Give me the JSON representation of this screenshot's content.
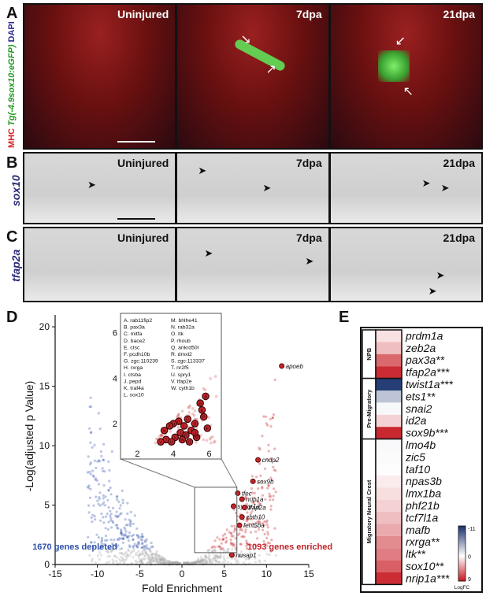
{
  "panels": {
    "A": {
      "letter": "A",
      "stain_mhc": "MHC",
      "stain_gfp": "Tg(-4.9sox10:eGFP)",
      "stain_dapi": "DAPI",
      "labels": [
        "Uninjured",
        "7dpa",
        "21dpa"
      ]
    },
    "B": {
      "letter": "B",
      "gene": "sox10",
      "labels": [
        "Uninjured",
        "7dpa",
        "21dpa"
      ]
    },
    "C": {
      "letter": "C",
      "gene": "tfap2a",
      "labels": [
        "Uninjured",
        "7dpa",
        "21dpa"
      ]
    },
    "D": {
      "letter": "D"
    },
    "E": {
      "letter": "E"
    }
  },
  "colors": {
    "depleted": "#3b5bb0",
    "enriched": "#c8242a",
    "insignificant": "#b0b0b0",
    "gfp": "#5fe05a",
    "dapi": "#3a3aa0"
  },
  "chart_data": [
    {
      "type": "scatter",
      "xlabel": "Fold Enrichment",
      "ylabel": "-Log(adjusted p Value)",
      "xlim": [
        -15,
        15
      ],
      "ylim": [
        0,
        21
      ],
      "xticks": [
        "-15",
        "-10",
        "-5",
        "0",
        "5",
        "10",
        "15"
      ],
      "yticks": [
        "0",
        "5",
        "10",
        "15",
        "20"
      ],
      "depleted_label": "1670 genes depleted",
      "enriched_label": "1093 genes enriched",
      "labeled_points": [
        {
          "gene": "apoeb",
          "x": 11.8,
          "y": 16.7
        },
        {
          "gene": "cndp2",
          "x": 9.0,
          "y": 8.8
        },
        {
          "gene": "sox9b",
          "x": 8.4,
          "y": 7.0
        },
        {
          "gene": "tfec",
          "x": 6.6,
          "y": 6.0
        },
        {
          "gene": "nrip1a",
          "x": 7.1,
          "y": 5.5
        },
        {
          "gene": "syngr1a",
          "x": 6.1,
          "y": 4.9
        },
        {
          "gene": "tfap2a",
          "x": 7.4,
          "y": 4.8
        },
        {
          "gene": "zbtb10",
          "x": 7.1,
          "y": 4.0
        },
        {
          "gene": "fent5ba",
          "x": 6.8,
          "y": 3.3
        },
        {
          "gene": "nusap1",
          "x": 5.9,
          "y": 0.8
        }
      ],
      "inset": {
        "xlim": [
          1.5,
          6.5
        ],
        "ylim": [
          1,
          6.5
        ],
        "xticks": [
          "2",
          "4",
          "6"
        ],
        "yticks": [
          "2",
          "4",
          "6"
        ],
        "legend_col1": [
          "A. rab11fip2",
          "B. pax3a",
          "C. mitfa",
          "D. bace2",
          "E. ctsc",
          "F. pcdh10b",
          "G. zgc:110239",
          "H. rxrga",
          "I. ctsba",
          "J. pepd",
          "K. traf4a",
          "L. sox10"
        ],
        "legend_col2": [
          "M. bhlhe41",
          "N. rab32a",
          "O. ltk",
          "P. rhoub",
          "Q. ankrd50l",
          "R. dmxl2",
          "S. zgc:113337",
          "T. nr2f5",
          "U. spry1",
          "V. tfap2e",
          "W. cyth1b"
        ],
        "points": [
          {
            "k": "A",
            "x": 5.8,
            "y": 3.2
          },
          {
            "k": "B",
            "x": 5.5,
            "y": 2.9
          },
          {
            "k": "C",
            "x": 4.8,
            "y": 2.2
          },
          {
            "k": "D",
            "x": 5.2,
            "y": 2.0
          },
          {
            "k": "E",
            "x": 5.6,
            "y": 2.6
          },
          {
            "k": "F",
            "x": 5.9,
            "y": 1.8
          },
          {
            "k": "G",
            "x": 4.3,
            "y": 2.1
          },
          {
            "k": "H",
            "x": 4.0,
            "y": 2.0
          },
          {
            "k": "I",
            "x": 4.4,
            "y": 1.6
          },
          {
            "k": "J",
            "x": 5.0,
            "y": 1.7
          },
          {
            "k": "K",
            "x": 3.8,
            "y": 1.9
          },
          {
            "k": "L",
            "x": 4.6,
            "y": 1.9
          },
          {
            "k": "M",
            "x": 5.3,
            "y": 1.4
          },
          {
            "k": "N",
            "x": 3.5,
            "y": 1.7
          },
          {
            "k": "O",
            "x": 4.9,
            "y": 1.2
          },
          {
            "k": "P",
            "x": 5.7,
            "y": 2.3
          },
          {
            "k": "Q",
            "x": 5.2,
            "y": 1.6
          },
          {
            "k": "R",
            "x": 4.7,
            "y": 1.5
          },
          {
            "k": "S",
            "x": 4.1,
            "y": 1.4
          },
          {
            "k": "T",
            "x": 3.6,
            "y": 1.3
          },
          {
            "k": "U",
            "x": 3.9,
            "y": 1.2
          },
          {
            "k": "V",
            "x": 3.3,
            "y": 1.2
          },
          {
            "k": "W",
            "x": 4.5,
            "y": 1.3
          }
        ]
      }
    },
    {
      "type": "heatmap",
      "colorbar_max": "-11",
      "colorbar_mid": "0",
      "colorbar_min": "9",
      "colorbar_label": "LogFC",
      "groups": [
        {
          "name": "NPB",
          "genes": [
            {
              "gene": "prdm1a",
              "logfc": 1.2
            },
            {
              "gene": "zeb2a",
              "logfc": 2.6
            },
            {
              "gene": "pax3a**",
              "logfc": 6.0
            },
            {
              "gene": "tfap2a***",
              "logfc": 8.5
            }
          ]
        },
        {
          "name": "Pre-Migratory",
          "genes": [
            {
              "gene": "twist1a***",
              "logfc": -10.5
            },
            {
              "gene": "ets1**",
              "logfc": -3.2
            },
            {
              "gene": "snai2",
              "logfc": -0.4
            },
            {
              "gene": "id2a",
              "logfc": 1.8
            },
            {
              "gene": "sox9b***",
              "logfc": 8.6
            }
          ]
        },
        {
          "name": "Migratory Neural Crest",
          "genes": [
            {
              "gene": "lmo4b",
              "logfc": -0.3
            },
            {
              "gene": "zic5",
              "logfc": -0.2
            },
            {
              "gene": "taf10",
              "logfc": 0.1
            },
            {
              "gene": "npas3b",
              "logfc": 0.8
            },
            {
              "gene": "lmx1ba",
              "logfc": 1.3
            },
            {
              "gene": "phf21b",
              "logfc": 1.8
            },
            {
              "gene": "tcf7l1a",
              "logfc": 2.6
            },
            {
              "gene": "mafb",
              "logfc": 3.4
            },
            {
              "gene": "rxrga**",
              "logfc": 4.6
            },
            {
              "gene": "ltk**",
              "logfc": 5.2
            },
            {
              "gene": "sox10**",
              "logfc": 6.4
            },
            {
              "gene": "nrip1a***",
              "logfc": 8.4
            }
          ]
        }
      ]
    }
  ]
}
